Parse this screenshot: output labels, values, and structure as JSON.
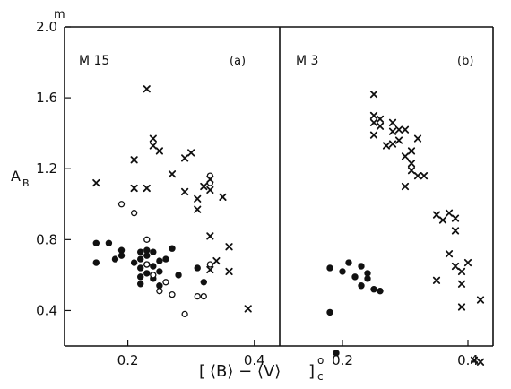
{
  "chart_data": {
    "type": "scatter",
    "ylabel_main": "A",
    "ylabel_sub": "B",
    "y_unit": "m",
    "xlabel": {
      "open_bracket": "[",
      "expression": "⟨B⟩ − ⟨V⟩",
      "close_bracket": "]",
      "superscript": "o",
      "subscript": "c"
    },
    "ylim": [
      0.2,
      2.0
    ],
    "y_ticks": [
      "0.4",
      "0.8",
      "1.2",
      "1.6",
      "2.0"
    ],
    "y_tick_values": [
      0.4,
      0.8,
      1.2,
      1.6,
      2.0
    ],
    "panels": [
      {
        "name": "M 15",
        "tag": "(a)",
        "xlim": [
          0.1,
          0.44
        ],
        "x_ticks": [
          "0.2",
          "0.4"
        ],
        "x_tick_values": [
          0.2,
          0.4
        ],
        "series": [
          {
            "marker": "filled-circle",
            "points": [
              [
                0.15,
                0.78
              ],
              [
                0.15,
                0.67
              ],
              [
                0.17,
                0.78
              ],
              [
                0.18,
                0.69
              ],
              [
                0.19,
                0.74
              ],
              [
                0.19,
                0.71
              ],
              [
                0.21,
                0.67
              ],
              [
                0.22,
                0.73
              ],
              [
                0.22,
                0.69
              ],
              [
                0.22,
                0.64
              ],
              [
                0.22,
                0.59
              ],
              [
                0.22,
                0.55
              ],
              [
                0.23,
                0.74
              ],
              [
                0.23,
                0.71
              ],
              [
                0.23,
                0.66
              ],
              [
                0.23,
                0.61
              ],
              [
                0.24,
                0.73
              ],
              [
                0.24,
                0.65
              ],
              [
                0.24,
                0.58
              ],
              [
                0.25,
                0.68
              ],
              [
                0.25,
                0.62
              ],
              [
                0.25,
                0.54
              ],
              [
                0.26,
                0.69
              ],
              [
                0.27,
                0.75
              ],
              [
                0.28,
                0.6
              ],
              [
                0.31,
                0.64
              ],
              [
                0.32,
                0.56
              ]
            ]
          },
          {
            "marker": "open-circle",
            "points": [
              [
                0.19,
                1.0
              ],
              [
                0.21,
                0.95
              ],
              [
                0.23,
                0.8
              ],
              [
                0.23,
                0.66
              ],
              [
                0.24,
                0.6
              ],
              [
                0.25,
                0.51
              ],
              [
                0.26,
                0.56
              ],
              [
                0.27,
                0.49
              ],
              [
                0.29,
                0.38
              ],
              [
                0.31,
                0.48
              ],
              [
                0.32,
                0.48
              ],
              [
                0.33,
                0.66
              ],
              [
                0.33,
                1.16
              ],
              [
                0.33,
                1.12
              ]
            ]
          },
          {
            "marker": "cross",
            "points": [
              [
                0.15,
                1.12
              ],
              [
                0.21,
                1.25
              ],
              [
                0.21,
                1.09
              ],
              [
                0.23,
                1.65
              ],
              [
                0.23,
                1.09
              ],
              [
                0.24,
                1.37
              ],
              [
                0.24,
                1.33
              ],
              [
                0.25,
                1.3
              ],
              [
                0.27,
                1.17
              ],
              [
                0.29,
                1.26
              ],
              [
                0.29,
                1.07
              ],
              [
                0.3,
                1.29
              ],
              [
                0.31,
                1.03
              ],
              [
                0.31,
                0.97
              ],
              [
                0.32,
                1.1
              ],
              [
                0.33,
                1.14
              ],
              [
                0.33,
                1.08
              ],
              [
                0.33,
                0.82
              ],
              [
                0.33,
                0.63
              ],
              [
                0.34,
                0.68
              ],
              [
                0.35,
                1.04
              ],
              [
                0.36,
                0.76
              ],
              [
                0.36,
                0.62
              ],
              [
                0.39,
                0.41
              ]
            ]
          }
        ]
      },
      {
        "name": "M 3",
        "tag": "(b)",
        "xlim": [
          0.1,
          0.44
        ],
        "x_ticks": [
          "0.2",
          "0.4"
        ],
        "x_tick_values": [
          0.2,
          0.4
        ],
        "series": [
          {
            "marker": "filled-circle",
            "points": [
              [
                0.18,
                0.64
              ],
              [
                0.18,
                0.39
              ],
              [
                0.19,
                0.16
              ],
              [
                0.2,
                0.62
              ],
              [
                0.21,
                0.67
              ],
              [
                0.22,
                0.59
              ],
              [
                0.23,
                0.65
              ],
              [
                0.23,
                0.54
              ],
              [
                0.24,
                0.61
              ],
              [
                0.24,
                0.58
              ],
              [
                0.25,
                0.52
              ],
              [
                0.26,
                0.51
              ]
            ]
          },
          {
            "marker": "cross",
            "points": [
              [
                0.25,
                1.62
              ],
              [
                0.25,
                1.5
              ],
              [
                0.25,
                1.46
              ],
              [
                0.25,
                1.39
              ],
              [
                0.26,
                1.48
              ],
              [
                0.26,
                1.44
              ],
              [
                0.27,
                1.33
              ],
              [
                0.28,
                1.46
              ],
              [
                0.28,
                1.41
              ],
              [
                0.28,
                1.34
              ],
              [
                0.29,
                1.42
              ],
              [
                0.29,
                1.36
              ],
              [
                0.3,
                1.42
              ],
              [
                0.3,
                1.27
              ],
              [
                0.3,
                1.1
              ],
              [
                0.31,
                1.3
              ],
              [
                0.31,
                1.23
              ],
              [
                0.31,
                1.19
              ],
              [
                0.32,
                1.37
              ],
              [
                0.32,
                1.16
              ],
              [
                0.33,
                1.16
              ],
              [
                0.35,
                0.94
              ],
              [
                0.35,
                0.57
              ],
              [
                0.36,
                0.91
              ],
              [
                0.37,
                0.95
              ],
              [
                0.37,
                0.72
              ],
              [
                0.38,
                0.92
              ],
              [
                0.38,
                0.85
              ],
              [
                0.38,
                0.65
              ],
              [
                0.39,
                0.62
              ],
              [
                0.39,
                0.55
              ],
              [
                0.39,
                0.42
              ],
              [
                0.4,
                0.67
              ],
              [
                0.41,
                0.12
              ],
              [
                0.42,
                0.46
              ],
              [
                0.42,
                0.11
              ]
            ]
          }
        ]
      }
    ]
  }
}
